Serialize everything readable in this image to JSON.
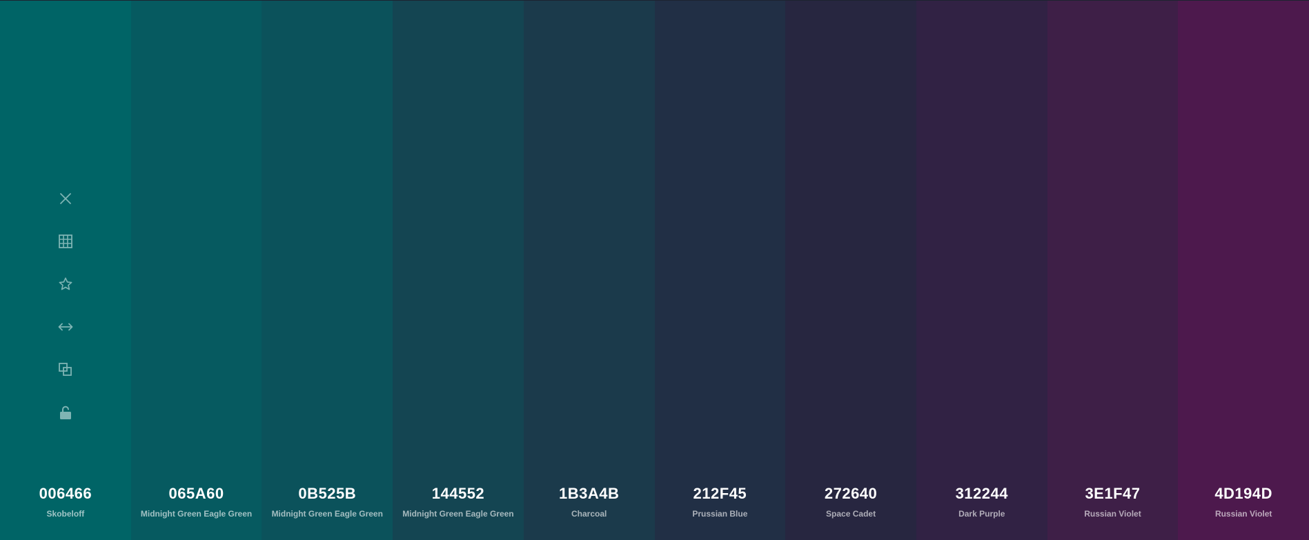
{
  "swatches": [
    {
      "hex": "006466",
      "name": "Skobeloff",
      "color": "#006466"
    },
    {
      "hex": "065A60",
      "name": "Midnight Green Eagle Green",
      "color": "#065A60"
    },
    {
      "hex": "0B525B",
      "name": "Midnight Green Eagle Green",
      "color": "#0B525B"
    },
    {
      "hex": "144552",
      "name": "Midnight Green Eagle Green",
      "color": "#144552"
    },
    {
      "hex": "1B3A4B",
      "name": "Charcoal",
      "color": "#1B3A4B"
    },
    {
      "hex": "212F45",
      "name": "Prussian Blue",
      "color": "#212F45"
    },
    {
      "hex": "272640",
      "name": "Space Cadet",
      "color": "#272640"
    },
    {
      "hex": "312244",
      "name": "Dark Purple",
      "color": "#312244"
    },
    {
      "hex": "3E1F47",
      "name": "Russian Violet",
      "color": "#3E1F47"
    },
    {
      "hex": "4D194D",
      "name": "Russian Violet",
      "color": "#4D194D"
    }
  ],
  "swatch_tools": [
    "close-icon",
    "view-shades-icon",
    "favorite-star-icon",
    "drag-move-icon",
    "copy-icon",
    "unlock-icon"
  ],
  "icon_color": "#7fb4b4"
}
